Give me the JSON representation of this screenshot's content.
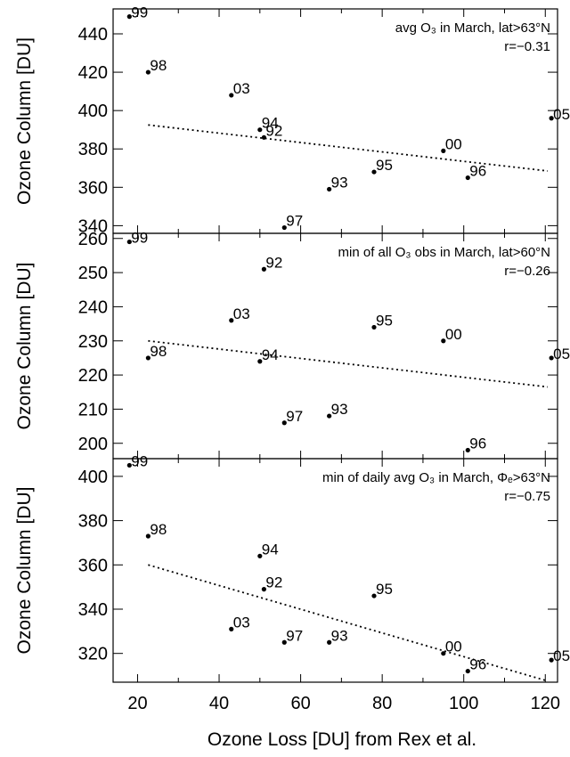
{
  "chart_data": [
    {
      "type": "scatter",
      "annotation": "avg O₃ in March, lat>63°N",
      "r_label": "r=−0.31",
      "ylabel": "Ozone Column [DU]",
      "xlim": [
        14,
        123
      ],
      "ylim": [
        336,
        453
      ],
      "yticks": [
        340,
        360,
        380,
        400,
        420,
        440
      ],
      "trend": {
        "x": [
          22.6,
          120.6
        ],
        "y": [
          392.5,
          368.5
        ]
      },
      "points": [
        {
          "label": "99",
          "x": 18,
          "y": 449
        },
        {
          "label": "98",
          "x": 22.6,
          "y": 420
        },
        {
          "label": "03",
          "x": 43,
          "y": 408
        },
        {
          "label": "94",
          "x": 50,
          "y": 390
        },
        {
          "label": "92",
          "x": 51,
          "y": 386
        },
        {
          "label": "97",
          "x": 56,
          "y": 339
        },
        {
          "label": "93",
          "x": 67,
          "y": 359
        },
        {
          "label": "95",
          "x": 78,
          "y": 368
        },
        {
          "label": "00",
          "x": 95,
          "y": 379
        },
        {
          "label": "96",
          "x": 101,
          "y": 365
        },
        {
          "label": "05",
          "x": 121.5,
          "y": 396
        }
      ]
    },
    {
      "type": "scatter",
      "annotation": "min of all O₃ obs in March, lat>60°N",
      "r_label": "r=−0.26",
      "ylabel": "Ozone Column [DU]",
      "xlim": [
        14,
        123
      ],
      "ylim": [
        195.5,
        261.5
      ],
      "yticks": [
        200,
        210,
        220,
        230,
        240,
        250,
        260
      ],
      "trend": {
        "x": [
          22.6,
          120.6
        ],
        "y": [
          230,
          216.5
        ]
      },
      "points": [
        {
          "label": "99",
          "x": 18,
          "y": 259
        },
        {
          "label": "92",
          "x": 51,
          "y": 251
        },
        {
          "label": "03",
          "x": 43,
          "y": 236
        },
        {
          "label": "98",
          "x": 22.6,
          "y": 225
        },
        {
          "label": "94",
          "x": 50,
          "y": 224
        },
        {
          "label": "97",
          "x": 56,
          "y": 206
        },
        {
          "label": "93",
          "x": 67,
          "y": 208
        },
        {
          "label": "95",
          "x": 78,
          "y": 234
        },
        {
          "label": "00",
          "x": 95,
          "y": 230
        },
        {
          "label": "96",
          "x": 101,
          "y": 198
        },
        {
          "label": "05",
          "x": 121.5,
          "y": 225
        }
      ]
    },
    {
      "type": "scatter",
      "annotation": "min of daily avg O₃ in March, Φₑ>63°N",
      "r_label": "r=−0.75",
      "xlabel": "Ozone Loss [DU] from Rex et al.",
      "ylabel": "Ozone Column [DU]",
      "xlim": [
        14,
        123
      ],
      "ylim": [
        307,
        408
      ],
      "xticks": [
        20,
        40,
        60,
        80,
        100,
        120
      ],
      "yticks": [
        320,
        340,
        360,
        380,
        400
      ],
      "trend": {
        "x": [
          22.6,
          120.6
        ],
        "y": [
          360,
          307.5
        ]
      },
      "points": [
        {
          "label": "99",
          "x": 18,
          "y": 405
        },
        {
          "label": "98",
          "x": 22.6,
          "y": 373
        },
        {
          "label": "94",
          "x": 50,
          "y": 364
        },
        {
          "label": "92",
          "x": 51,
          "y": 349
        },
        {
          "label": "03",
          "x": 43,
          "y": 331
        },
        {
          "label": "97",
          "x": 56,
          "y": 325
        },
        {
          "label": "93",
          "x": 67,
          "y": 325
        },
        {
          "label": "95",
          "x": 78,
          "y": 346
        },
        {
          "label": "00",
          "x": 95,
          "y": 320
        },
        {
          "label": "96",
          "x": 101,
          "y": 312
        },
        {
          "label": "05",
          "x": 121.5,
          "y": 317
        }
      ]
    }
  ]
}
